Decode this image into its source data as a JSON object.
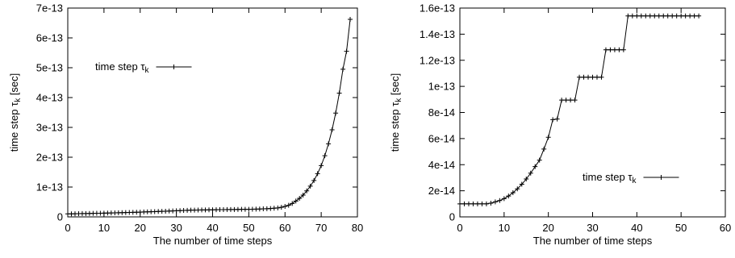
{
  "chart_data": [
    {
      "type": "line",
      "xlabel": "The number of time steps",
      "ylabel_main": "time step τ",
      "ylabel_sub": "k",
      "ylabel_unit": " [sec]",
      "xlim": [
        0,
        80
      ],
      "ylim": [
        0,
        7e-13
      ],
      "xticks": [
        0,
        10,
        20,
        30,
        40,
        50,
        60,
        70,
        80
      ],
      "yticks": [
        0,
        1e-13,
        2e-13,
        3e-13,
        4e-13,
        5e-13,
        6e-13,
        7e-13
      ],
      "ytick_labels": [
        "0",
        "1e-13",
        "2e-13",
        "3e-13",
        "4e-13",
        "5e-13",
        "6e-13",
        "7e-13"
      ],
      "legend": {
        "label_main": "time step τ",
        "label_sub": "k",
        "position": "upper-left"
      },
      "series": [
        {
          "name": "time step τk",
          "x": [
            0,
            1,
            2,
            3,
            4,
            5,
            6,
            7,
            8,
            9,
            10,
            11,
            12,
            13,
            14,
            15,
            16,
            17,
            18,
            19,
            20,
            21,
            22,
            23,
            24,
            25,
            26,
            27,
            28,
            29,
            30,
            31,
            32,
            33,
            34,
            35,
            36,
            37,
            38,
            39,
            40,
            41,
            42,
            43,
            44,
            45,
            46,
            47,
            48,
            49,
            50,
            51,
            52,
            53,
            54,
            55,
            56,
            57,
            58,
            59,
            60,
            61,
            62,
            63,
            64,
            65,
            66,
            67,
            68,
            69,
            70,
            71,
            72,
            73,
            74,
            75,
            76,
            77,
            78
          ],
          "y": [
            1e-14,
            1.02e-14,
            1.05e-14,
            1.07e-14,
            1.1e-14,
            1.12e-14,
            1.15e-14,
            1.18e-14,
            1.2e-14,
            1.23e-14,
            1.26e-14,
            1.29e-14,
            1.32e-14,
            1.35e-14,
            1.38e-14,
            1.42e-14,
            1.45e-14,
            1.49e-14,
            1.52e-14,
            1.56e-14,
            1.6e-14,
            1.64e-14,
            1.68e-14,
            1.72e-14,
            1.76e-14,
            1.81e-14,
            1.85e-14,
            1.9e-14,
            1.95e-14,
            2e-14,
            2.05e-14,
            2.1e-14,
            2.15e-14,
            2.2e-14,
            2.25e-14,
            2.28e-14,
            2.3e-14,
            2.32e-14,
            2.34e-14,
            2.36e-14,
            2.38e-14,
            2.4e-14,
            2.42e-14,
            2.43e-14,
            2.45e-14,
            2.46e-14,
            2.48e-14,
            2.5e-14,
            2.52e-14,
            2.53e-14,
            2.55e-14,
            2.57e-14,
            2.6e-14,
            2.65e-14,
            2.7e-14,
            2.75e-14,
            2.8e-14,
            2.9e-14,
            3e-14,
            3.2e-14,
            3.5e-14,
            3.9e-14,
            4.5e-14,
            5.3e-14,
            6.2e-14,
            7.3e-14,
            8.7e-14,
            1.03e-13,
            1.22e-13,
            1.45e-13,
            1.72e-13,
            2.05e-13,
            2.45e-13,
            2.92e-13,
            3.48e-13,
            4.15e-13,
            4.95e-13,
            5.55e-13,
            6.62e-13
          ]
        }
      ]
    },
    {
      "type": "line",
      "xlabel": "The number of time steps",
      "ylabel_main": "time step τ",
      "ylabel_sub": "k",
      "ylabel_unit": " [sec]",
      "xlim": [
        0,
        60
      ],
      "ylim": [
        0,
        1.6e-13
      ],
      "xticks": [
        0,
        10,
        20,
        30,
        40,
        50,
        60
      ],
      "yticks": [
        0,
        2e-14,
        4e-14,
        6e-14,
        8e-14,
        1e-13,
        1.2e-13,
        1.4e-13,
        1.6e-13
      ],
      "ytick_labels": [
        "0",
        "2e-14",
        "4e-14",
        "6e-14",
        "8e-14",
        "1e-13",
        "1.2e-13",
        "1.4e-13",
        "1.6e-13"
      ],
      "legend": {
        "label_main": "time step τ",
        "label_sub": "k",
        "position": "lower-right"
      },
      "series": [
        {
          "name": "time step τk",
          "x": [
            0,
            1,
            2,
            3,
            4,
            5,
            6,
            7,
            8,
            9,
            10,
            11,
            12,
            13,
            14,
            15,
            16,
            17,
            18,
            19,
            20,
            21,
            22,
            23,
            24,
            25,
            26,
            27,
            28,
            29,
            30,
            31,
            32,
            33,
            34,
            35,
            36,
            37,
            38,
            39,
            40,
            41,
            42,
            43,
            44,
            45,
            46,
            47,
            48,
            49,
            50,
            51,
            52,
            53,
            54
          ],
          "y": [
            1e-14,
            1e-14,
            1e-14,
            1e-14,
            1e-14,
            1e-14,
            1e-14,
            1.05e-14,
            1.15e-14,
            1.25e-14,
            1.4e-14,
            1.6e-14,
            1.85e-14,
            2.15e-14,
            2.5e-14,
            2.9e-14,
            3.35e-14,
            3.85e-14,
            4.35e-14,
            5.2e-14,
            6.1e-14,
            7.45e-14,
            7.5e-14,
            8.95e-14,
            8.95e-14,
            8.95e-14,
            8.95e-14,
            1.07e-13,
            1.07e-13,
            1.07e-13,
            1.07e-13,
            1.07e-13,
            1.07e-13,
            1.28e-13,
            1.28e-13,
            1.28e-13,
            1.28e-13,
            1.28e-13,
            1.54e-13,
            1.54e-13,
            1.54e-13,
            1.54e-13,
            1.54e-13,
            1.54e-13,
            1.54e-13,
            1.54e-13,
            1.54e-13,
            1.54e-13,
            1.54e-13,
            1.54e-13,
            1.54e-13,
            1.54e-13,
            1.54e-13,
            1.54e-13,
            1.54e-13
          ]
        }
      ]
    }
  ]
}
